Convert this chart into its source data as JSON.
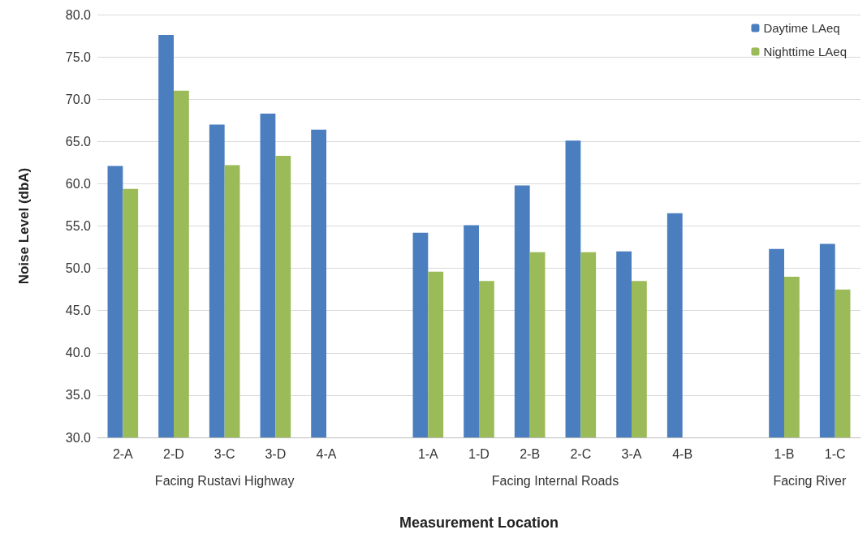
{
  "chart_data": {
    "type": "bar",
    "xlabel": "Measurement Location",
    "ylabel": "Noise Level (dbA)",
    "categories": [
      "2-A",
      "2-D",
      "3-C",
      "3-D",
      "4-A",
      null,
      "1-A",
      "1-D",
      "2-B",
      "2-C",
      "3-A",
      "4-B",
      null,
      "1-B",
      "1-C"
    ],
    "series": [
      {
        "name": "Daytime LAeq",
        "color": "#4a7ebf",
        "values": [
          62.1,
          77.6,
          67.0,
          68.3,
          66.4,
          null,
          54.2,
          55.1,
          59.8,
          65.1,
          52.0,
          56.5,
          null,
          52.3,
          52.9
        ]
      },
      {
        "name": "Nighttime LAeq",
        "color": "#9bbb59",
        "values": [
          59.4,
          71.0,
          62.2,
          63.3,
          null,
          null,
          49.6,
          48.5,
          51.9,
          51.9,
          48.5,
          null,
          null,
          49.0,
          47.5
        ]
      }
    ],
    "annotations": [
      "Facing Rustavi Highway",
      "Facing Internal Roads",
      "Facing River"
    ],
    "ylim": [
      30,
      80
    ],
    "yticks": [
      {
        "value": 30,
        "label": "30.0"
      },
      {
        "value": 35,
        "label": "35.0"
      },
      {
        "value": 40,
        "label": "40.0"
      },
      {
        "value": 45,
        "label": "45.0"
      },
      {
        "value": 50,
        "label": "50.0"
      },
      {
        "value": 55,
        "label": "55.0"
      },
      {
        "value": 60,
        "label": "60.0"
      },
      {
        "value": 65,
        "label": "65.0"
      },
      {
        "value": 70,
        "label": "70.0"
      },
      {
        "value": 75,
        "label": "75.0"
      },
      {
        "value": 80,
        "label": "80.0"
      }
    ],
    "grid": "y",
    "legend": "top right"
  }
}
